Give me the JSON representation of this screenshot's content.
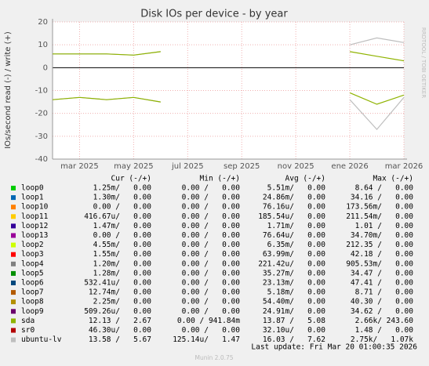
{
  "chart_data": {
    "type": "line",
    "title": "Disk IOs per device - by year",
    "ylabel": "IOs/second read (-) / write (+)",
    "side_note": "RRDTOOL / TOBI OETIKER",
    "x": [
      "2025-02",
      "2025-03",
      "2025-04",
      "2025-05",
      "2025-06",
      "2025-07",
      "2025-08",
      "2025-09",
      "2025-10",
      "2025-11",
      "2025-12",
      "2026-01",
      "2026-02",
      "2026-03"
    ],
    "xlim": [
      "2025-02",
      "2026-03"
    ],
    "xticks": [
      {
        "value": "2025-03",
        "label": "mar 2025"
      },
      {
        "value": "2025-05",
        "label": "may 2025"
      },
      {
        "value": "2025-07",
        "label": "jul 2025"
      },
      {
        "value": "2025-09",
        "label": "sep 2025"
      },
      {
        "value": "2025-11",
        "label": "nov 2025"
      },
      {
        "value": "2026-01",
        "label": "ene 2026"
      },
      {
        "value": "2026-03",
        "label": "mar 2026"
      }
    ],
    "ylim": [
      -40,
      20
    ],
    "yticks": [
      20,
      10,
      0,
      -10,
      -20,
      -30,
      -40
    ],
    "grid": true,
    "series": [
      {
        "name": "ubuntu-lv",
        "color": "#bebebe",
        "values": [
          6,
          6,
          6,
          5.5,
          7,
          null,
          null,
          null,
          null,
          null,
          null,
          10,
          13,
          11
        ],
        "read_values": [
          -14,
          -13,
          -14,
          -13,
          -15,
          null,
          null,
          null,
          null,
          null,
          null,
          -14,
          -27,
          -13
        ]
      },
      {
        "name": "sda",
        "color": "#8fb300",
        "values": [
          6,
          6,
          6,
          5.5,
          7,
          null,
          null,
          null,
          null,
          null,
          null,
          7,
          5,
          3
        ],
        "read_values": [
          -14,
          -13,
          -14,
          -13,
          -15,
          null,
          null,
          null,
          null,
          null,
          null,
          -11,
          -16,
          -12
        ]
      }
    ],
    "legend": {
      "columns": [
        "Cur (-/+)",
        "Min (-/+)",
        "Avg (-/+)",
        "Max (-/+)"
      ],
      "rows": [
        {
          "name": "loop0",
          "color": "#00cc00",
          "cells": [
            "1.25m/   0.00",
            "0.00 /   0.00",
            "5.51m/   0.00",
            "8.64 /   0.00"
          ]
        },
        {
          "name": "loop1",
          "color": "#0066b3",
          "cells": [
            "1.30m/   0.00",
            "0.00 /   0.00",
            "24.86m/   0.00",
            "34.16 /   0.00"
          ]
        },
        {
          "name": "loop10",
          "color": "#ff8000",
          "cells": [
            "0.00 /   0.00",
            "0.00 /   0.00",
            "76.16u/   0.00",
            "173.56m/   0.00"
          ]
        },
        {
          "name": "loop11",
          "color": "#ffcc00",
          "cells": [
            "416.67u/   0.00",
            "0.00 /   0.00",
            "185.54u/   0.00",
            "211.54m/   0.00"
          ]
        },
        {
          "name": "loop12",
          "color": "#330099",
          "cells": [
            "1.47m/   0.00",
            "0.00 /   0.00",
            "1.71m/   0.00",
            "1.01 /   0.00"
          ]
        },
        {
          "name": "loop13",
          "color": "#990099",
          "cells": [
            "0.00 /   0.00",
            "0.00 /   0.00",
            "76.64u/   0.00",
            "34.70m/   0.00"
          ]
        },
        {
          "name": "loop2",
          "color": "#ccff00",
          "cells": [
            "4.55m/   0.00",
            "0.00 /   0.00",
            "6.35m/   0.00",
            "212.35 /   0.00"
          ]
        },
        {
          "name": "loop3",
          "color": "#ff0000",
          "cells": [
            "1.55m/   0.00",
            "0.00 /   0.00",
            "63.99m/   0.00",
            "42.18 /   0.00"
          ]
        },
        {
          "name": "loop4",
          "color": "#808080",
          "cells": [
            "1.20m/   0.00",
            "0.00 /   0.00",
            "221.42u/   0.00",
            "905.53m/   0.00"
          ]
        },
        {
          "name": "loop5",
          "color": "#008f00",
          "cells": [
            "1.28m/   0.00",
            "0.00 /   0.00",
            "35.27m/   0.00",
            "34.47 /   0.00"
          ]
        },
        {
          "name": "loop6",
          "color": "#00487d",
          "cells": [
            "532.41u/   0.00",
            "0.00 /   0.00",
            "23.13m/   0.00",
            "47.41 /   0.00"
          ]
        },
        {
          "name": "loop7",
          "color": "#b35a00",
          "cells": [
            "12.74m/   0.00",
            "0.00 /   0.00",
            "5.18m/   0.00",
            "8.71 /   0.00"
          ]
        },
        {
          "name": "loop8",
          "color": "#b38f00",
          "cells": [
            "2.25m/   0.00",
            "0.00 /   0.00",
            "54.40m/   0.00",
            "40.30 /   0.00"
          ]
        },
        {
          "name": "loop9",
          "color": "#6b006b",
          "cells": [
            "509.26u/   0.00",
            "0.00 /   0.00",
            "24.91m/   0.00",
            "34.62 /   0.00"
          ]
        },
        {
          "name": "sda",
          "color": "#8fb300",
          "cells": [
            "12.13 /   2.67",
            "0.00 / 941.84m",
            "13.87 /   5.08",
            "2.66k/ 243.60"
          ]
        },
        {
          "name": "sr0",
          "color": "#b30000",
          "cells": [
            "46.30u/   0.00",
            "0.00 /   0.00",
            "32.10u/   0.00",
            "1.48 /   0.00"
          ]
        },
        {
          "name": "ubuntu-lv",
          "color": "#bebebe",
          "cells": [
            "13.58 /   5.67",
            "125.14u/   1.47",
            "16.03 /   7.62",
            "2.75k/   1.07k"
          ]
        }
      ]
    },
    "last_update": "Last update: Fri Mar 20 01:00:35 2026",
    "footer": "Munin 2.0.75"
  }
}
